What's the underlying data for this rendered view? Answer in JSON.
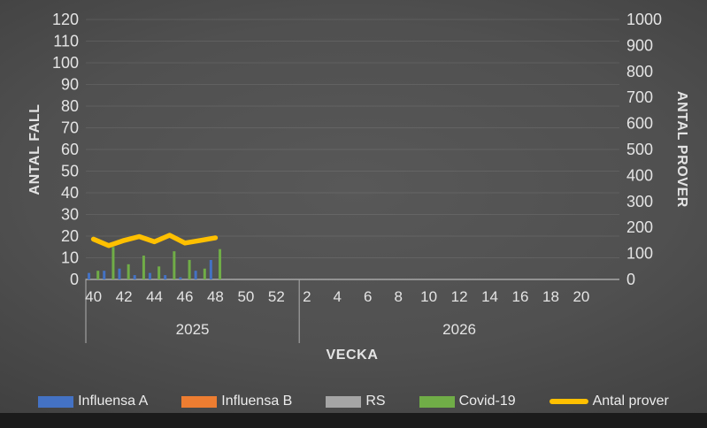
{
  "chart_data": {
    "type": "bar+line",
    "left_axis": {
      "title": "ANTAL FALL",
      "min": 0,
      "max": 120,
      "step": 10
    },
    "right_axis": {
      "title": "ANTAL PROVER",
      "min": 0,
      "max": 1000,
      "step": 100
    },
    "x_axis": {
      "title": "VECKA",
      "groups": [
        {
          "year": "2025",
          "slots": 14,
          "label_start_slot": 0,
          "label_step": 2,
          "labels": [
            "40",
            "42",
            "44",
            "46",
            "48",
            "50",
            "52"
          ]
        },
        {
          "year": "2026",
          "slots": 21,
          "label_start_slot": 0,
          "label_step": 2,
          "labels": [
            "2",
            "4",
            "6",
            "8",
            "10",
            "12",
            "14",
            "16",
            "18",
            "20"
          ]
        }
      ]
    },
    "weeks_with_data": [
      40,
      41,
      42,
      43,
      44,
      45,
      46,
      47,
      48
    ],
    "bar_series": [
      {
        "name": "Influensa A",
        "color": "#4472C4",
        "start_slot": 0,
        "values": [
          3,
          4,
          5,
          2,
          3,
          2,
          1,
          4,
          9
        ]
      },
      {
        "name": "Influensa B",
        "color": "#ED7D31",
        "start_slot": 0,
        "values": [
          0,
          0,
          0,
          0,
          0,
          0,
          0,
          0,
          0
        ]
      },
      {
        "name": "RS",
        "color": "#A5A5A5",
        "start_slot": 0,
        "values": [
          0,
          0,
          0,
          0,
          0,
          0,
          0,
          0,
          0
        ]
      },
      {
        "name": "Covid-19",
        "color": "#70AD47",
        "start_slot": 0,
        "values": [
          4,
          15,
          7,
          11,
          6,
          13,
          9,
          5,
          14
        ]
      }
    ],
    "line_series": {
      "name": "Antal prover",
      "color": "#FFC000",
      "axis": "right",
      "start_slot": 0,
      "values": [
        155,
        130,
        150,
        165,
        145,
        170,
        140,
        150,
        160
      ]
    },
    "legend": {
      "position": "bottom",
      "entries": [
        "Influensa A",
        "Influensa B",
        "RS",
        "Covid-19",
        "Antal prover"
      ]
    },
    "grid": "horizontal",
    "plot_background": "dark-gray-gradient"
  }
}
